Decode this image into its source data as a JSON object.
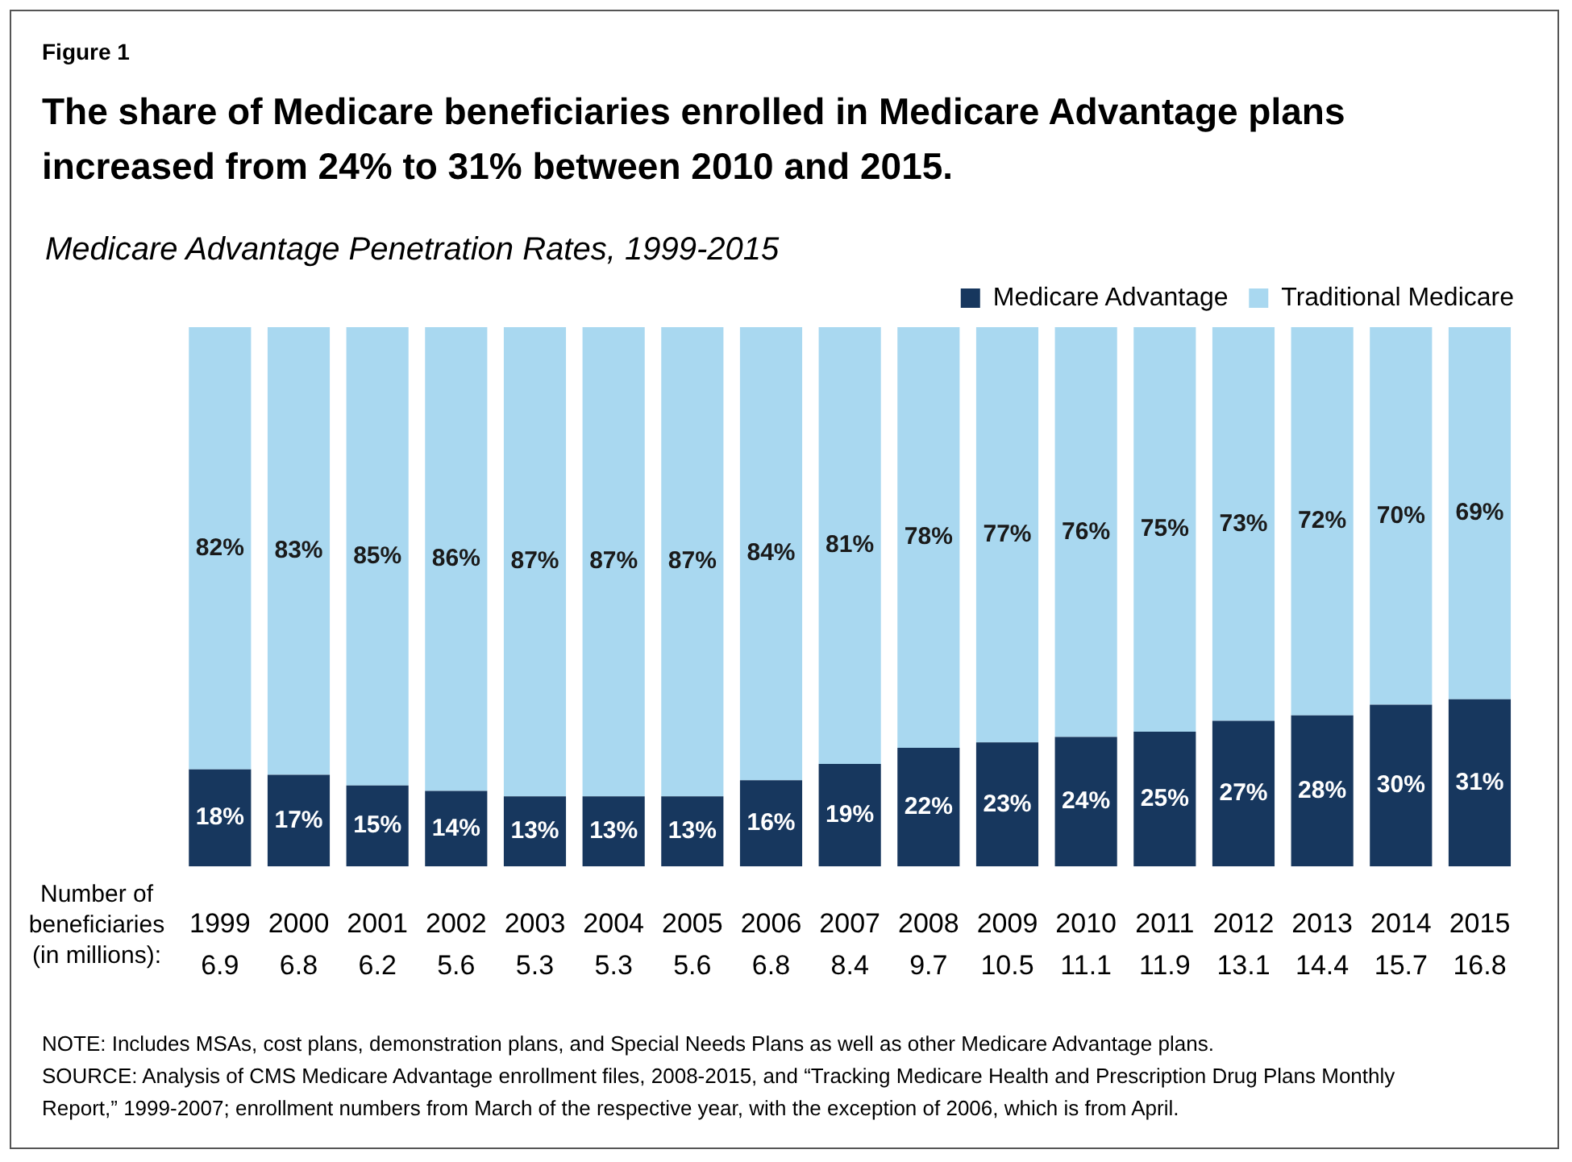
{
  "chart_data": {
    "type": "bar",
    "stacked": true,
    "title": "The share of Medicare beneficiaries enrolled in Medicare Advantage plans increased from 24% to 31% between 2010 and 2015.",
    "subtitle": "Medicare Advantage Penetration Rates, 1999-2015",
    "categories": [
      "1999",
      "2000",
      "2001",
      "2002",
      "2003",
      "2004",
      "2005",
      "2006",
      "2007",
      "2008",
      "2009",
      "2010",
      "2011",
      "2012",
      "2013",
      "2014",
      "2015"
    ],
    "series": [
      {
        "name": "Medicare Advantage",
        "color": "#17375e",
        "values": [
          18,
          17,
          15,
          14,
          13,
          13,
          13,
          16,
          19,
          22,
          23,
          24,
          25,
          27,
          28,
          30,
          31
        ],
        "value_labels": [
          "18%",
          "17%",
          "15%",
          "14%",
          "13%",
          "13%",
          "13%",
          "16%",
          "19%",
          "22%",
          "23%",
          "24%",
          "25%",
          "27%",
          "28%",
          "30%",
          "31%"
        ]
      },
      {
        "name": "Traditional Medicare",
        "color": "#a9d8f0",
        "values": [
          82,
          83,
          85,
          86,
          87,
          87,
          87,
          84,
          81,
          78,
          77,
          76,
          75,
          73,
          72,
          70,
          69
        ],
        "value_labels": [
          "82%",
          "83%",
          "85%",
          "86%",
          "87%",
          "87%",
          "87%",
          "84%",
          "81%",
          "78%",
          "77%",
          "76%",
          "75%",
          "73%",
          "72%",
          "70%",
          "69%"
        ]
      }
    ],
    "ylim": [
      0,
      100
    ],
    "tick_labels": "x",
    "grid": false,
    "legend": "top right",
    "annotations": [
      "Figure 1",
      "Number of beneficiaries (in millions):",
      "6.9",
      "6.8",
      "6.2",
      "5.6",
      "5.3",
      "5.3",
      "5.6",
      "6.8",
      "8.4",
      "9.7",
      "10.5",
      "11.1",
      "11.9",
      "13.1",
      "14.4",
      "15.7",
      "16.8",
      "NOTE:  Includes MSAs, cost plans, demonstration plans, and Special Needs Plans as well as other Medicare Advantage plans.",
      "SOURCE:  Analysis of CMS Medicare Advantage enrollment files, 2008-2015, and “Tracking Medicare Health and Prescription Drug Plans Monthly Report,” 1999-2007; enrollment numbers from March of the respective year, with the exception of 2006, which is from April."
    ]
  }
}
